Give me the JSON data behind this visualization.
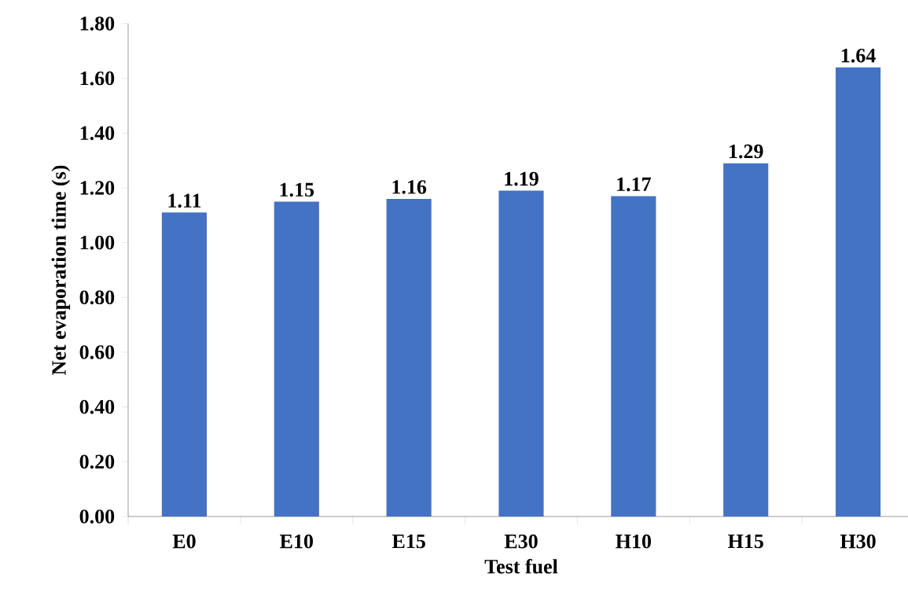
{
  "chart_data": {
    "type": "bar",
    "xlabel": "Test fuel",
    "ylabel": "Net evaporation time (s)",
    "categories": [
      "E0",
      "E10",
      "E15",
      "E30",
      "H10",
      "H15",
      "H30"
    ],
    "values": [
      1.11,
      1.15,
      1.16,
      1.19,
      1.17,
      1.29,
      1.64
    ],
    "color": "#4472c4",
    "data_labels": true,
    "ylim": [
      0,
      1.8
    ],
    "yticks": [
      {
        "value": 0,
        "label": "0.00"
      },
      {
        "value": 0.2,
        "label": "0.20"
      },
      {
        "value": 0.4,
        "label": "0.40"
      },
      {
        "value": 0.6,
        "label": "0.60"
      },
      {
        "value": 0.8,
        "label": "0.80"
      },
      {
        "value": 1.0,
        "label": "1.00"
      },
      {
        "value": 1.2,
        "label": "1.20"
      },
      {
        "value": 1.4,
        "label": "1.40"
      },
      {
        "value": 1.6,
        "label": "1.60"
      },
      {
        "value": 1.8,
        "label": "1.80"
      }
    ],
    "grid": false
  }
}
